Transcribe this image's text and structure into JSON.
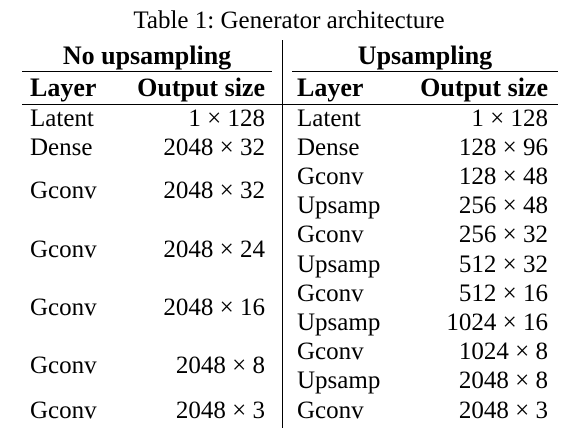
{
  "caption": "Table 1: Generator architecture",
  "groups": {
    "left": "No upsampling",
    "right": "Upsampling"
  },
  "columns": {
    "layer": "Layer",
    "output_size": "Output size"
  },
  "left_rows": [
    {
      "layer": "Latent",
      "size": "1 × 128"
    },
    {
      "layer": "Dense",
      "size": "2048 × 32"
    },
    {
      "layer": "Gconv",
      "size": "2048 × 32"
    },
    {
      "layer": "Gconv",
      "size": "2048 × 24"
    },
    {
      "layer": "Gconv",
      "size": "2048 × 16"
    },
    {
      "layer": "Gconv",
      "size": "2048 × 8"
    },
    {
      "layer": "Gconv",
      "size": "2048 × 3"
    }
  ],
  "right_rows": [
    {
      "layer": "Latent",
      "size": "1 × 128"
    },
    {
      "layer": "Dense",
      "size": "128 × 96"
    },
    {
      "layer": "Gconv",
      "size": "128 × 48"
    },
    {
      "layer": "Upsamp",
      "size": "256 × 48"
    },
    {
      "layer": "Gconv",
      "size": "256 × 32"
    },
    {
      "layer": "Upsamp",
      "size": "512 × 32"
    },
    {
      "layer": "Gconv",
      "size": "512 × 16"
    },
    {
      "layer": "Upsamp",
      "size": "1024 × 16"
    },
    {
      "layer": "Gconv",
      "size": "1024 × 8"
    },
    {
      "layer": "Upsamp",
      "size": "2048 × 8"
    },
    {
      "layer": "Gconv",
      "size": "2048 × 3"
    }
  ]
}
